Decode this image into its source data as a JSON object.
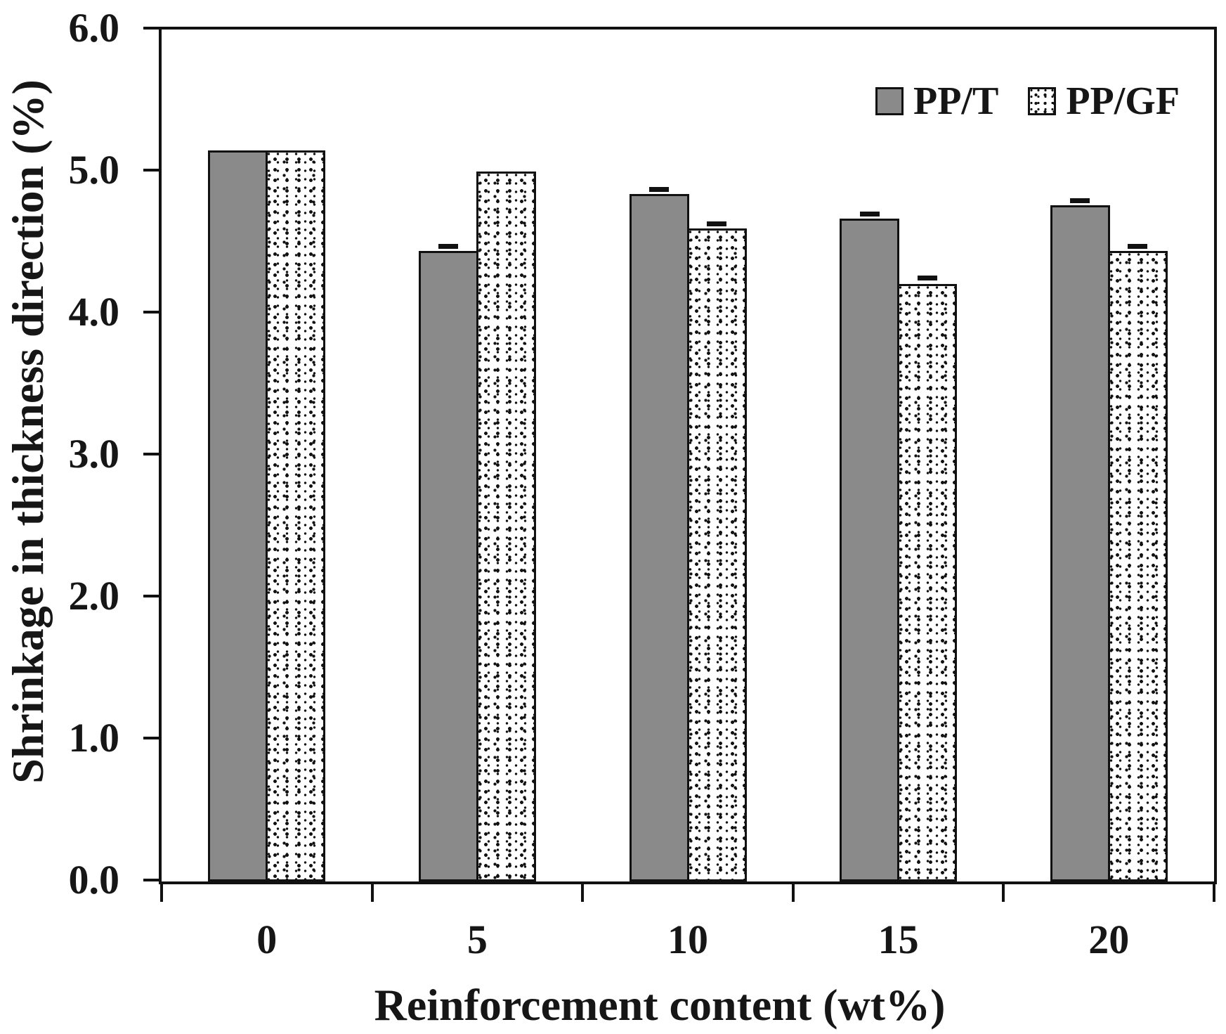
{
  "chart_data": {
    "type": "bar",
    "title": "",
    "categories": [
      "0",
      "5",
      "10",
      "15",
      "20"
    ],
    "series": [
      {
        "name": "PP/T",
        "fill": "solid-gray",
        "values": [
          5.15,
          4.44,
          4.84,
          4.67,
          4.76
        ],
        "errors": [
          0,
          0.03,
          0.03,
          0.03,
          0.03
        ]
      },
      {
        "name": "PP/GF",
        "fill": "dotted-pattern",
        "values": [
          5.15,
          5.0,
          4.6,
          4.21,
          4.44
        ],
        "errors": [
          0,
          0,
          0.03,
          0.04,
          0.03
        ]
      }
    ],
    "xlabel": "Reinforcement content (wt%)",
    "ylabel": "Shrinkage in thickness direction (%)",
    "ylim": [
      0.0,
      6.0
    ],
    "ytick_step": 1.0,
    "ytick_labels": [
      "0.0",
      "1.0",
      "2.0",
      "3.0",
      "4.0",
      "5.0",
      "6.0"
    ],
    "grid": false,
    "legend_position": "inside-top-right",
    "colors": {
      "bar_gray": "#8a8a8a",
      "ink": "#161616",
      "background": "#ffffff"
    }
  }
}
